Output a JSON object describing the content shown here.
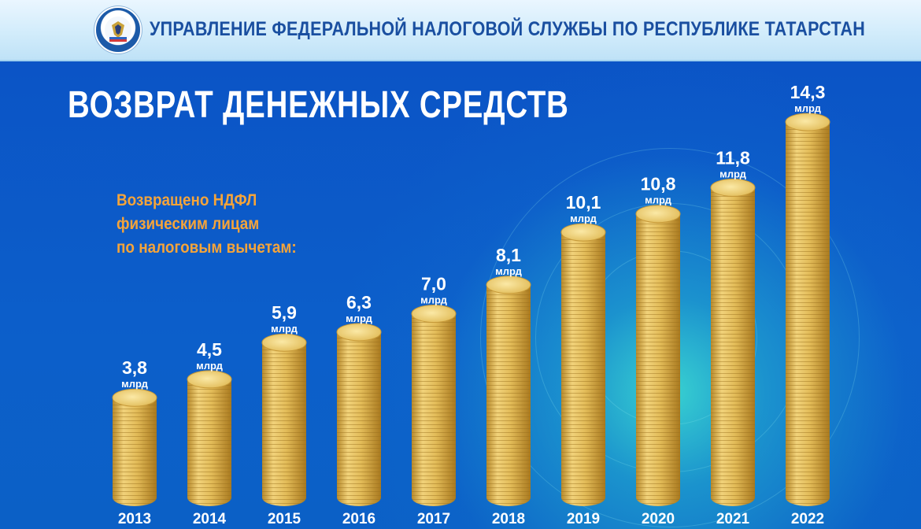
{
  "header": {
    "title": "УПРАВЛЕНИЕ ФЕДЕРАЛЬНОЙ НАЛОГОВОЙ СЛУЖБЫ ПО РЕСПУБЛИКЕ ТАТАРСТАН",
    "emblem_icon": "fns-emblem-icon"
  },
  "slide": {
    "title": "ВОЗВРАТ ДЕНЕЖНЫХ СРЕДСТВ",
    "subtitle_lines": [
      "Возвращено НДФЛ",
      "физическим лицам",
      "по налоговым вычетам:"
    ]
  },
  "colors": {
    "background": "#0b57c4",
    "accent_orange": "#f5a43a",
    "coin_gold": "#e8c35a"
  },
  "chart_data": {
    "type": "bar",
    "categories": [
      "2013",
      "2014",
      "2015",
      "2016",
      "2017",
      "2018",
      "2019",
      "2020",
      "2021",
      "2022"
    ],
    "values": [
      3.8,
      4.5,
      5.9,
      6.3,
      7.0,
      8.1,
      10.1,
      10.8,
      11.8,
      14.3
    ],
    "value_labels": [
      "3,8",
      "4,5",
      "5,9",
      "6,3",
      "7,0",
      "8,1",
      "10,1",
      "10,8",
      "11,8",
      "14,3"
    ],
    "unit": "млрд",
    "title": "",
    "xlabel": "",
    "ylabel": "",
    "ylim": [
      0,
      14.3
    ]
  }
}
